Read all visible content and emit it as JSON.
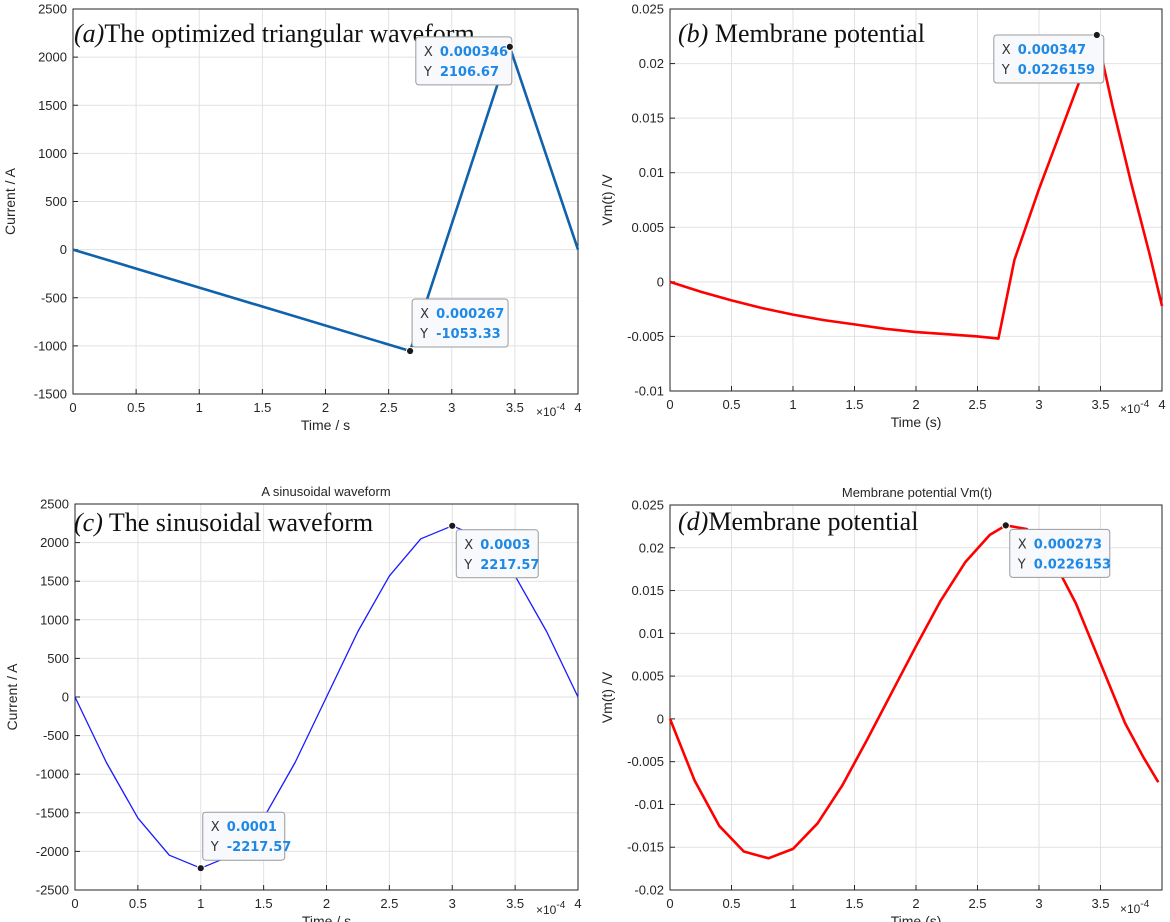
{
  "chart_data": [
    {
      "id": "a",
      "type": "line",
      "panel_title": "The optimized triangular waveform",
      "panel_letter": "(a)",
      "title": "",
      "xlabel": "Time / s",
      "ylabel": "Current / A",
      "x_multiplier": "×10",
      "x_exponent": "-4",
      "xlim": [
        0,
        4
      ],
      "ylim": [
        -1500,
        2500
      ],
      "xticks": [
        0,
        0.5,
        1,
        1.5,
        2,
        2.5,
        3,
        3.5,
        4
      ],
      "yticks": [
        -1500,
        -1000,
        -500,
        0,
        500,
        1000,
        1500,
        2000,
        2500
      ],
      "xtick_labels": [
        "0",
        "0.5",
        "1",
        "1.5",
        "2",
        "2.5",
        "3",
        "3.5",
        "4"
      ],
      "ytick_labels": [
        "-1500",
        "-1000",
        "-500",
        "0",
        "500",
        "1000",
        "1500",
        "2000",
        "2500"
      ],
      "grid": true,
      "series": [
        {
          "name": "Current",
          "color": "#0f62ac",
          "x": [
            0,
            2.67,
            3.46,
            4.0
          ],
          "y": [
            0,
            -1053.33,
            2106.67,
            0
          ]
        }
      ],
      "datatips": [
        {
          "x": 2.67,
          "y": -1053.33,
          "x_text": "0.000267",
          "y_text": "-1053.33"
        },
        {
          "x": 3.46,
          "y": 2106.67,
          "x_text": "0.000346",
          "y_text": "2106.67"
        }
      ]
    },
    {
      "id": "b",
      "type": "line",
      "panel_title": "Membrane potential",
      "panel_letter": "(b)",
      "title": "",
      "xlabel": "Time (s)",
      "ylabel": "Vm(t) /V",
      "x_multiplier": "×10",
      "x_exponent": "-4",
      "xlim": [
        0,
        4
      ],
      "ylim": [
        -0.01,
        0.025
      ],
      "xticks": [
        0,
        0.5,
        1,
        1.5,
        2,
        2.5,
        3,
        3.5,
        4
      ],
      "yticks": [
        -0.01,
        -0.005,
        0,
        0.005,
        0.01,
        0.015,
        0.02,
        0.025
      ],
      "xtick_labels": [
        "0",
        "0.5",
        "1",
        "1.5",
        "2",
        "2.5",
        "3",
        "3.5",
        "4"
      ],
      "ytick_labels": [
        "-0.01",
        "-0.005",
        "0",
        "0.005",
        "0.01",
        "0.015",
        "0.02",
        "0.025"
      ],
      "grid": true,
      "series": [
        {
          "name": "Vm",
          "color": "#ff0000",
          "x": [
            0,
            0.25,
            0.5,
            0.75,
            1.0,
            1.25,
            1.5,
            1.75,
            2.0,
            2.25,
            2.5,
            2.67,
            2.8,
            3.0,
            3.2,
            3.47,
            3.6,
            3.75,
            3.9,
            4.0
          ],
          "y": [
            0,
            -0.0009,
            -0.0017,
            -0.0024,
            -0.003,
            -0.0035,
            -0.0039,
            -0.0043,
            -0.0046,
            -0.0048,
            -0.005,
            -0.0052,
            0.002,
            0.0085,
            0.0145,
            0.0226159,
            0.016,
            0.009,
            0.0025,
            -0.0022
          ]
        }
      ],
      "datatips": [
        {
          "x": 3.47,
          "y": 0.0226159,
          "x_text": "0.000347",
          "y_text": "0.0226159"
        }
      ]
    },
    {
      "id": "c",
      "type": "line",
      "panel_title": "The sinusoidal waveform",
      "panel_letter": "(c)",
      "title": "A sinusoidal waveform",
      "xlabel": "Time / s",
      "ylabel": "Current / A",
      "x_multiplier": "×10",
      "x_exponent": "-4",
      "xlim": [
        0,
        4
      ],
      "ylim": [
        -2500,
        2500
      ],
      "xticks": [
        0,
        0.5,
        1,
        1.5,
        2,
        2.5,
        3,
        3.5,
        4
      ],
      "yticks": [
        -2500,
        -2000,
        -1500,
        -1000,
        -500,
        0,
        500,
        1000,
        1500,
        2000,
        2500
      ],
      "xtick_labels": [
        "0",
        "0.5",
        "1",
        "1.5",
        "2",
        "2.5",
        "3",
        "3.5",
        "4"
      ],
      "ytick_labels": [
        "-2500",
        "-2000",
        "-1500",
        "-1000",
        "-500",
        "0",
        "500",
        "1000",
        "1500",
        "2000",
        "2500"
      ],
      "grid": true,
      "series": [
        {
          "name": "Current",
          "color": "#1a1aff",
          "x": [
            0,
            0.25,
            0.5,
            0.75,
            1.0,
            1.25,
            1.5,
            1.75,
            2.0,
            2.25,
            2.5,
            2.75,
            3.0,
            3.25,
            3.5,
            3.75,
            4.0
          ],
          "y": [
            0,
            -848.6,
            -1568.1,
            -2048.8,
            -2217.57,
            -2048.8,
            -1568.1,
            -848.6,
            0,
            848.6,
            1568.1,
            2048.8,
            2217.57,
            2048.8,
            1568.1,
            848.6,
            0
          ]
        }
      ],
      "datatips": [
        {
          "x": 1.0,
          "y": -2217.57,
          "x_text": "0.0001",
          "y_text": "-2217.57"
        },
        {
          "x": 3.0,
          "y": 2217.57,
          "x_text": "0.0003",
          "y_text": "2217.57"
        }
      ]
    },
    {
      "id": "d",
      "type": "line",
      "panel_title": "Membrane potential",
      "panel_letter": "(d)",
      "title": "Membrane potential Vm(t)",
      "xlabel": "Time (s)",
      "ylabel": "Vm(t) /V",
      "x_multiplier": "×10",
      "x_exponent": "-4",
      "xlim": [
        0,
        4
      ],
      "ylim": [
        -0.02,
        0.025
      ],
      "xticks": [
        0,
        0.5,
        1,
        1.5,
        2,
        2.5,
        3,
        3.5
      ],
      "yticks": [
        -0.02,
        -0.015,
        -0.01,
        -0.005,
        0,
        0.005,
        0.01,
        0.015,
        0.02,
        0.025
      ],
      "xtick_labels": [
        "0",
        "0.5",
        "1",
        "1.5",
        "2",
        "2.5",
        "3",
        "3.5"
      ],
      "ytick_labels": [
        "-0.02",
        "-0.015",
        "-0.01",
        "-0.005",
        "0",
        "0.005",
        "0.01",
        "0.015",
        "0.02",
        "0.025"
      ],
      "grid": true,
      "series": [
        {
          "name": "Vm",
          "color": "#ff0000",
          "x": [
            0,
            0.2,
            0.4,
            0.6,
            0.8,
            1.0,
            1.2,
            1.4,
            1.6,
            1.8,
            2.0,
            2.2,
            2.4,
            2.6,
            2.73,
            2.9,
            3.1,
            3.3,
            3.5,
            3.7,
            3.85,
            3.97
          ],
          "y": [
            0,
            -0.0072,
            -0.0125,
            -0.0155,
            -0.0163,
            -0.0152,
            -0.0122,
            -0.0078,
            -0.0025,
            0.003,
            0.0085,
            0.0138,
            0.0183,
            0.0215,
            0.0226153,
            0.0222,
            0.019,
            0.0135,
            0.0065,
            -0.0005,
            -0.0045,
            -0.0074
          ]
        }
      ],
      "datatips": [
        {
          "x": 2.73,
          "y": 0.0226153,
          "x_text": "0.000273",
          "y_text": "0.0226153"
        }
      ]
    }
  ]
}
